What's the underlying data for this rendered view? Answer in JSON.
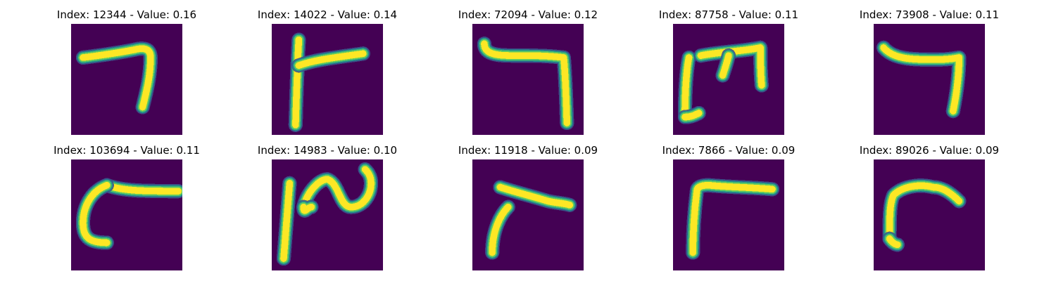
{
  "colors": {
    "background": "#440154",
    "stroke_core": "#fde725",
    "stroke_mid": "#5ec962",
    "stroke_edge": "#21918c",
    "stroke_outer": "#3b528b"
  },
  "panels": [
    {
      "title": "Index: 12344 - Value: 0.16",
      "index": 12344,
      "value": 0.16
    },
    {
      "title": "Index: 14022 - Value: 0.14",
      "index": 14022,
      "value": 0.14
    },
    {
      "title": "Index: 72094 - Value: 0.12",
      "index": 72094,
      "value": 0.12
    },
    {
      "title": "Index: 87758 - Value: 0.11",
      "index": 87758,
      "value": 0.11
    },
    {
      "title": "Index: 73908 - Value: 0.11",
      "index": 73908,
      "value": 0.11
    },
    {
      "title": "Index: 103694 - Value: 0.11",
      "index": 103694,
      "value": 0.11
    },
    {
      "title": "Index: 14983 - Value: 0.10",
      "index": 14983,
      "value": 0.1
    },
    {
      "title": "Index: 11918 - Value: 0.09",
      "index": 11918,
      "value": 0.09
    },
    {
      "title": "Index: 7866 - Value: 0.09",
      "index": 7866,
      "value": 0.09
    },
    {
      "title": "Index: 89026 - Value: 0.09",
      "index": 89026,
      "value": 0.09
    }
  ]
}
